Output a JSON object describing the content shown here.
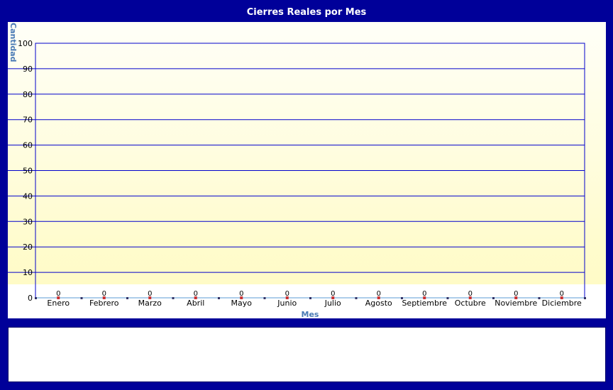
{
  "chart_data": {
    "type": "line",
    "title": "Cierres Reales por Mes",
    "xlabel": "Mes",
    "ylabel": "Cantidad",
    "categories": [
      "Enero",
      "Febrero",
      "Marzo",
      "Abril",
      "Mayo",
      "Junio",
      "Julio",
      "Agosto",
      "Septiembre",
      "Octubre",
      "Noviembre",
      "Diciembre"
    ],
    "values": [
      0,
      0,
      0,
      0,
      0,
      0,
      0,
      0,
      0,
      0,
      0,
      0
    ],
    "yticks": [
      0,
      10,
      20,
      30,
      40,
      50,
      60,
      70,
      80,
      90,
      100
    ],
    "ylim": [
      0,
      100
    ],
    "grid": true,
    "colors": {
      "frame": "#000099",
      "grid": "#0000cc",
      "label": "#4a7ab5",
      "marker": "#cc3333",
      "line": "#5b9bd5"
    }
  }
}
